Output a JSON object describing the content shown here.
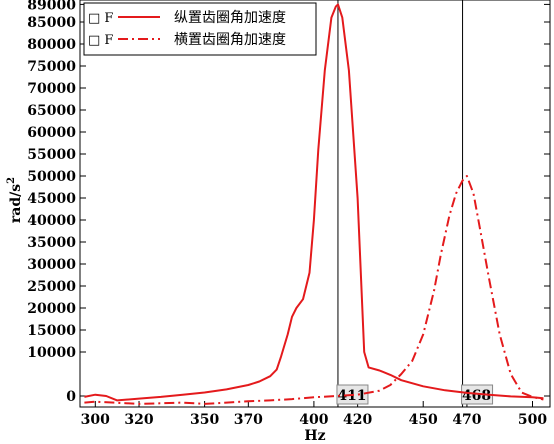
{
  "chart_data": {
    "type": "line",
    "xlabel": "Hz",
    "ylabel": "rad/s",
    "ylabel_sup": "2",
    "xlim": [
      293,
      508
    ],
    "ylim": [
      -2500,
      90000
    ],
    "x_ticks": [
      300,
      320,
      350,
      370,
      400,
      420,
      450,
      470,
      500
    ],
    "y_ticks": [
      0,
      10000,
      15000,
      20000,
      25000,
      30000,
      35000,
      40000,
      45000,
      50000,
      55000,
      60000,
      65000,
      70000,
      75000,
      80000,
      85000,
      89000
    ],
    "grid": false,
    "legend_position": "top-left",
    "series": [
      {
        "name": "纵置齿圈角加速度",
        "legend_marker": "□ F",
        "style": "solid",
        "color": "#e41a1c",
        "x": [
          295,
          300,
          305,
          310,
          320,
          330,
          340,
          350,
          360,
          370,
          375,
          380,
          383,
          385,
          388,
          390,
          392,
          395,
          398,
          400,
          402,
          405,
          408,
          410,
          411,
          413,
          416,
          420,
          423,
          425,
          430,
          435,
          440,
          450,
          460,
          470,
          480,
          490,
          500,
          505
        ],
        "y": [
          -200,
          300,
          0,
          -1000,
          -600,
          -200,
          300,
          800,
          1500,
          2500,
          3300,
          4500,
          6000,
          9000,
          14000,
          18000,
          20000,
          22000,
          28000,
          40000,
          56000,
          74000,
          86000,
          88500,
          89000,
          86000,
          74000,
          45000,
          10000,
          6500,
          5800,
          4800,
          3600,
          2200,
          1300,
          700,
          300,
          -100,
          -300,
          -500
        ]
      },
      {
        "name": "横置齿圈角加速度",
        "legend_marker": "□ F",
        "style": "dashdot",
        "color": "#e41a1c",
        "x": [
          295,
          300,
          320,
          340,
          350,
          360,
          370,
          380,
          390,
          400,
          410,
          420,
          430,
          435,
          440,
          445,
          450,
          455,
          458,
          462,
          465,
          468,
          470,
          473,
          476,
          480,
          485,
          490,
          495,
          500,
          505
        ],
        "y": [
          -1500,
          -1300,
          -1800,
          -1500,
          -1800,
          -1500,
          -1200,
          -1000,
          -700,
          -300,
          0,
          300,
          1200,
          2500,
          5000,
          8000,
          14000,
          24000,
          32000,
          41000,
          46000,
          49000,
          50000,
          46000,
          38000,
          27000,
          14000,
          5000,
          800,
          -200,
          -800
        ]
      }
    ],
    "cursors": [
      {
        "x": 411,
        "label": "411"
      },
      {
        "x": 468,
        "label": "468"
      }
    ]
  }
}
